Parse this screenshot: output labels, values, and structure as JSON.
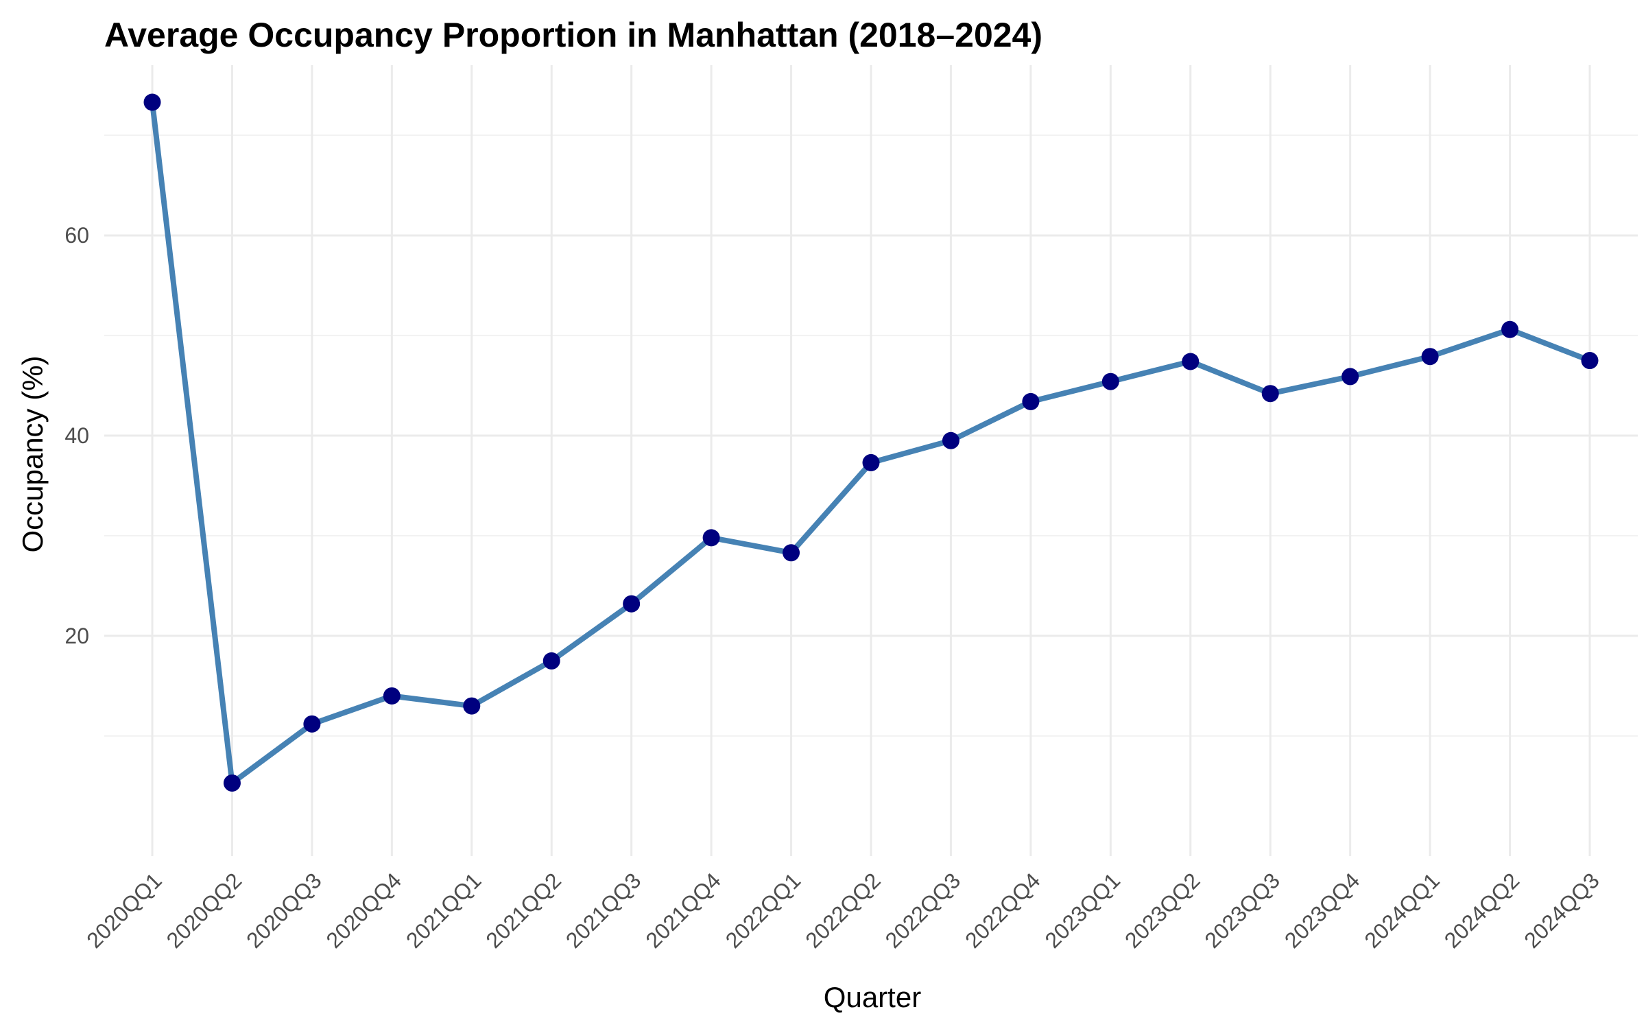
{
  "chart_data": {
    "type": "line",
    "title": "Average Occupancy Proportion in Manhattan (2018–2024)",
    "xlabel": "Quarter",
    "ylabel": "Occupancy (%)",
    "categories": [
      "2020QQ1",
      "2020QQ2",
      "2020QQ3",
      "2020QQ4",
      "2021QQ1",
      "2021QQ2",
      "2021QQ3",
      "2021QQ4",
      "2022QQ1",
      "2022QQ2",
      "2022QQ3",
      "2022QQ4",
      "2023QQ1",
      "2023QQ2",
      "2023QQ3",
      "2023QQ4",
      "2024QQ1",
      "2024QQ2",
      "2024QQ3"
    ],
    "series": [
      {
        "values": [
          73.3,
          5.3,
          11.2,
          14.0,
          13.0,
          17.5,
          23.2,
          29.8,
          28.3,
          37.3,
          39.5,
          43.4,
          45.4,
          47.4,
          44.2,
          45.9,
          47.9,
          50.6,
          47.5
        ]
      }
    ],
    "yticks": [
      20,
      40,
      60
    ],
    "ylim": [
      -2,
      77
    ],
    "grid": true,
    "legend": "none",
    "line_color": "#4682B4",
    "point_color": "#00007F"
  }
}
